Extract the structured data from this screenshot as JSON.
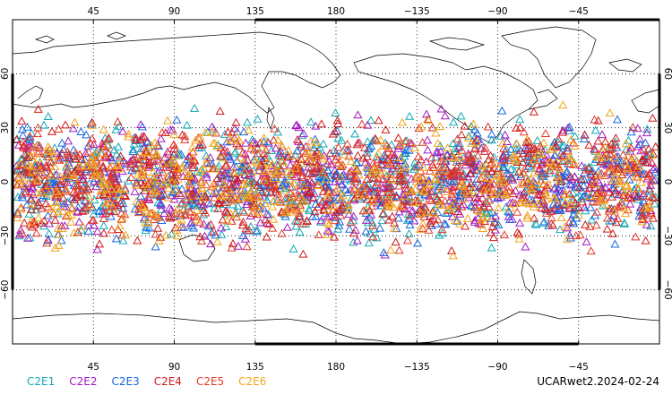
{
  "chart_data": {
    "type": "scatter",
    "title": "",
    "xlabel": "",
    "ylabel": "",
    "projection": "cylindrical-equidistant",
    "center_longitude": 180,
    "xlim": [
      0,
      360
    ],
    "ylim": [
      -90,
      90
    ],
    "grid": true,
    "top_ticks": [
      "45",
      "90",
      "135",
      "180",
      "−135",
      "−90",
      "−45"
    ],
    "bottom_ticks": [
      "45",
      "90",
      "135",
      "180",
      "−135",
      "−90",
      "−45"
    ],
    "y_ticks": [
      "60",
      "30",
      "0",
      "−30",
      "−60"
    ],
    "y_tick_values": [
      60,
      30,
      0,
      -30,
      -60
    ],
    "x_tick_values": [
      45,
      90,
      135,
      180,
      225,
      270,
      315
    ],
    "marker": "triangle-open",
    "lat_band": [
      -45,
      45
    ],
    "series": [
      {
        "name": "C2E1",
        "color": "#12a9b5",
        "count": 500
      },
      {
        "name": "C2E2",
        "color": "#a419c2",
        "count": 500
      },
      {
        "name": "C2E3",
        "color": "#1668e0",
        "count": 500
      },
      {
        "name": "C2E4",
        "color": "#d01a1a",
        "count": 500
      },
      {
        "name": "C2E5",
        "color": "#e23a2a",
        "count": 500
      },
      {
        "name": "C2E6",
        "color": "#f2a51a",
        "count": 500
      }
    ]
  },
  "footer": {
    "product": "UCARwet2.2024-02-24"
  }
}
